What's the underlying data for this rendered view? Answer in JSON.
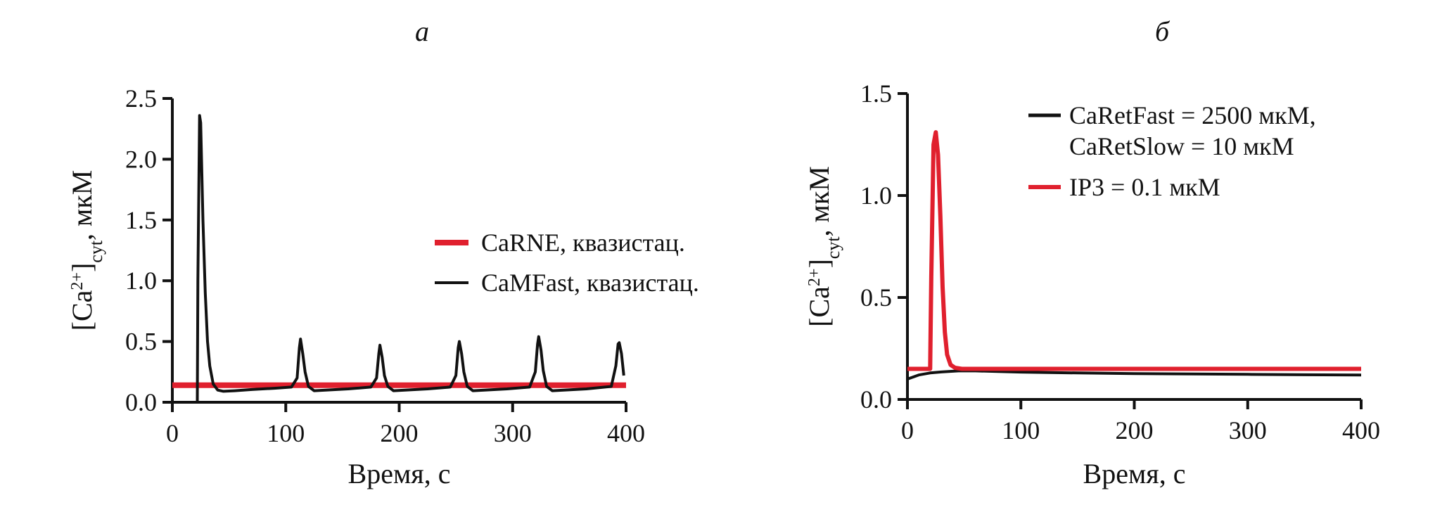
{
  "chart_data": [
    {
      "panel": "а",
      "type": "line",
      "xlabel": "Время, с",
      "ylabel": "[Ca2+]cyt, мкМ",
      "ylabel_parts": {
        "open": "[Ca",
        "sup": "2+",
        "close": "]",
        "sub": "cyt",
        "rest": ", мкМ"
      },
      "xlim": [
        0,
        400
      ],
      "ylim": [
        0,
        2.5
      ],
      "xticks": [
        "0",
        "100",
        "200",
        "300",
        "400"
      ],
      "yticks": [
        "0.0",
        "0.5",
        "1.0",
        "1.5",
        "2.0",
        "2.5"
      ],
      "legend_position": "right-middle",
      "series": [
        {
          "name": "CaRNE, квазистац.",
          "color": "#e0202e",
          "x": [
            0,
            400
          ],
          "y": [
            0.14,
            0.14
          ]
        },
        {
          "name": "CaMFast, квазистац.",
          "color": "#111111",
          "x": [
            22,
            22.5,
            24,
            25,
            27,
            29,
            31,
            33,
            36,
            40,
            45,
            55,
            70,
            90,
            105,
            110,
            112,
            113,
            115,
            117,
            120,
            125,
            135,
            155,
            175,
            180,
            182,
            183,
            185,
            187,
            190,
            195,
            205,
            225,
            245,
            250,
            252,
            253,
            255,
            257,
            260,
            265,
            275,
            295,
            315,
            320,
            322,
            323,
            325,
            327,
            330,
            335,
            345,
            365,
            387,
            391,
            393,
            394,
            396,
            398
          ],
          "y": [
            0.0,
            1.0,
            2.36,
            2.3,
            1.5,
            0.9,
            0.5,
            0.3,
            0.15,
            0.1,
            0.09,
            0.095,
            0.105,
            0.115,
            0.125,
            0.2,
            0.45,
            0.52,
            0.4,
            0.25,
            0.13,
            0.095,
            0.1,
            0.11,
            0.125,
            0.2,
            0.4,
            0.47,
            0.37,
            0.22,
            0.13,
            0.095,
            0.1,
            0.11,
            0.125,
            0.22,
            0.45,
            0.5,
            0.4,
            0.25,
            0.13,
            0.095,
            0.1,
            0.11,
            0.125,
            0.25,
            0.48,
            0.54,
            0.43,
            0.26,
            0.13,
            0.095,
            0.1,
            0.11,
            0.13,
            0.3,
            0.48,
            0.49,
            0.4,
            0.22
          ]
        }
      ]
    },
    {
      "panel": "б",
      "type": "line",
      "xlabel": "Время, с",
      "ylabel": "[Ca2+]cyt, мкМ",
      "ylabel_parts": {
        "open": "[Ca",
        "sup": "2+",
        "close": "]",
        "sub": "cyt",
        "rest": ", мкМ"
      },
      "xlim": [
        0,
        400
      ],
      "ylim": [
        0,
        1.5
      ],
      "xticks": [
        "0",
        "100",
        "200",
        "300",
        "400"
      ],
      "yticks": [
        "0.0",
        "0.5",
        "1.0",
        "1.5"
      ],
      "legend_position": "top-right",
      "series": [
        {
          "name": "CaRetFast = 2500 мкМ, CaRetSlow = 10 мкМ",
          "name_lines": [
            "CaRetFast = 2500 мкМ,",
            "CaRetSlow = 10 мкМ"
          ],
          "color": "#111111",
          "x": [
            0,
            5,
            10,
            20,
            30,
            45,
            60,
            80,
            100,
            150,
            200,
            250,
            300,
            350,
            400
          ],
          "y": [
            0.1,
            0.11,
            0.12,
            0.13,
            0.135,
            0.14,
            0.14,
            0.137,
            0.134,
            0.13,
            0.127,
            0.125,
            0.123,
            0.121,
            0.12
          ]
        },
        {
          "name": "IP3 = 0.1 мкМ",
          "color": "#e0202e",
          "x": [
            0,
            20,
            21,
            23,
            25,
            27,
            29,
            31,
            33,
            35,
            38,
            42,
            48,
            60,
            100,
            200,
            300,
            400
          ],
          "y": [
            0.15,
            0.15,
            0.6,
            1.25,
            1.31,
            1.2,
            0.9,
            0.55,
            0.33,
            0.22,
            0.17,
            0.155,
            0.15,
            0.15,
            0.15,
            0.15,
            0.15,
            0.15
          ]
        }
      ]
    }
  ]
}
